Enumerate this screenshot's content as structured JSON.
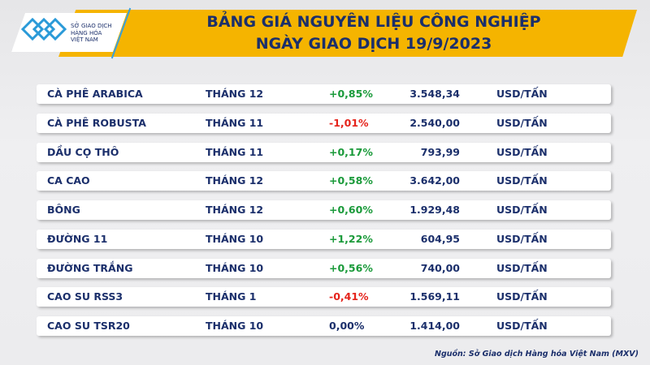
{
  "logo": {
    "text": [
      "SỞ GIAO DỊCH",
      "HÀNG HÓA",
      "VIỆT NAM"
    ]
  },
  "title": {
    "line1": "BẢNG GIÁ NGUYÊN LIỆU CÔNG NGHIỆP",
    "line2": "NGÀY GIAO DỊCH 19/9/2023"
  },
  "colors": {
    "banner": "#f5b400",
    "text": "#1b2f6b",
    "up": "#1a9a3a",
    "down": "#e5231b"
  },
  "rows": [
    {
      "name": "CÀ PHÊ ARABICA",
      "month": "THÁNG 12",
      "change": "+0,85%",
      "trend": "up",
      "price": "3.548,34",
      "unit": "USD/TẤN"
    },
    {
      "name": "CÀ PHÊ ROBUSTA",
      "month": "THÁNG 11",
      "change": "-1,01%",
      "trend": "down",
      "price": "2.540,00",
      "unit": "USD/TẤN"
    },
    {
      "name": "DẦU CỌ THÔ",
      "month": "THÁNG 11",
      "change": "+0,17%",
      "trend": "up",
      "price": "793,99",
      "unit": "USD/TẤN"
    },
    {
      "name": "CA CAO",
      "month": "THÁNG 12",
      "change": "+0,58%",
      "trend": "up",
      "price": "3.642,00",
      "unit": "USD/TẤN"
    },
    {
      "name": "BÔNG",
      "month": "THÁNG 12",
      "change": "+0,60%",
      "trend": "up",
      "price": "1.929,48",
      "unit": "USD/TẤN"
    },
    {
      "name": "ĐƯỜNG 11",
      "month": "THÁNG 10",
      "change": "+1,22%",
      "trend": "up",
      "price": "604,95",
      "unit": "USD/TẤN"
    },
    {
      "name": "ĐƯỜNG TRẮNG",
      "month": "THÁNG 10",
      "change": "+0,56%",
      "trend": "up",
      "price": "740,00",
      "unit": "USD/TẤN"
    },
    {
      "name": "CAO SU RSS3",
      "month": "THÁNG 1",
      "change": "-0,41%",
      "trend": "down",
      "price": "1.569,11",
      "unit": "USD/TẤN"
    },
    {
      "name": "CAO SU TSR20",
      "month": "THÁNG 10",
      "change": "0,00%",
      "trend": "flat",
      "price": "1.414,00",
      "unit": "USD/TẤN"
    }
  ],
  "source": "Nguồn: Sở Giao dịch Hàng hóa Việt Nam (MXV)"
}
